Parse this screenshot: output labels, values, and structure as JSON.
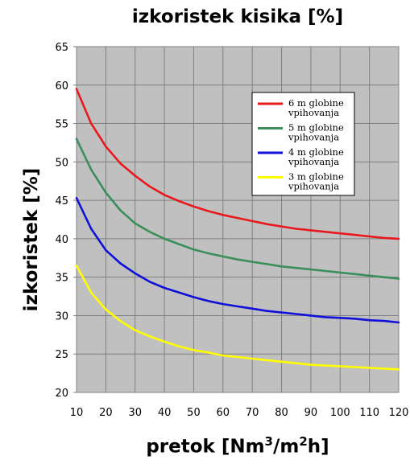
{
  "chart_data": {
    "type": "line",
    "title": "izkoristek kisika [%]",
    "ylabel": "izkoristek [%]",
    "xlabel": {
      "pre": "pretok [Nm",
      "sup1": "3",
      "mid": "/m",
      "sup2": "2",
      "post": "h]"
    },
    "x": [
      10,
      15,
      20,
      25,
      30,
      35,
      40,
      45,
      50,
      55,
      60,
      65,
      70,
      75,
      80,
      85,
      90,
      95,
      100,
      105,
      110,
      115,
      120
    ],
    "xticks": [
      "10",
      "20",
      "30",
      "40",
      "50",
      "60",
      "70",
      "80",
      "90",
      "100",
      "110",
      "120"
    ],
    "xtick_values": [
      10,
      20,
      30,
      40,
      50,
      60,
      70,
      80,
      90,
      100,
      110,
      120
    ],
    "yticks": [
      "20",
      "25",
      "30",
      "35",
      "40",
      "45",
      "50",
      "55",
      "60",
      "65"
    ],
    "ytick_values": [
      20,
      25,
      30,
      35,
      40,
      45,
      50,
      55,
      60,
      65
    ],
    "xlim": [
      10,
      120
    ],
    "ylim": [
      20,
      65
    ],
    "grid": true,
    "legend_position": "top-right",
    "plot_background": "#c0c0c0",
    "grid_color": "#808080",
    "series": [
      {
        "label_lines": [
          "6 m globine",
          "vpihovanja"
        ],
        "color": "#e8191c",
        "values": [
          59.5,
          55.0,
          52.0,
          49.8,
          48.2,
          46.8,
          45.7,
          44.9,
          44.2,
          43.6,
          43.1,
          42.7,
          42.3,
          41.9,
          41.6,
          41.3,
          41.1,
          40.9,
          40.7,
          40.5,
          40.3,
          40.1,
          40.0
        ]
      },
      {
        "label_lines": [
          "5 m globine",
          "vpihovanja"
        ],
        "color": "#3a8f5a",
        "values": [
          53.0,
          49.0,
          46.0,
          43.7,
          42.0,
          40.9,
          40.0,
          39.3,
          38.6,
          38.1,
          37.7,
          37.3,
          37.0,
          36.7,
          36.4,
          36.2,
          36.0,
          35.8,
          35.6,
          35.4,
          35.2,
          35.0,
          34.8
        ]
      },
      {
        "label_lines": [
          "4 m globine",
          "vpihovanja"
        ],
        "color": "#1010d8",
        "values": [
          45.3,
          41.3,
          38.5,
          36.8,
          35.5,
          34.4,
          33.6,
          33.0,
          32.4,
          31.9,
          31.5,
          31.2,
          30.9,
          30.6,
          30.4,
          30.2,
          30.0,
          29.8,
          29.7,
          29.6,
          29.4,
          29.3,
          29.1
        ]
      },
      {
        "label_lines": [
          "3 m globine",
          "vpihovanja"
        ],
        "color": "#ffff00",
        "values": [
          36.5,
          33.0,
          30.8,
          29.3,
          28.1,
          27.3,
          26.6,
          26.0,
          25.5,
          25.2,
          24.8,
          24.6,
          24.4,
          24.2,
          24.0,
          23.8,
          23.6,
          23.5,
          23.4,
          23.3,
          23.2,
          23.1,
          23.0
        ]
      }
    ]
  }
}
